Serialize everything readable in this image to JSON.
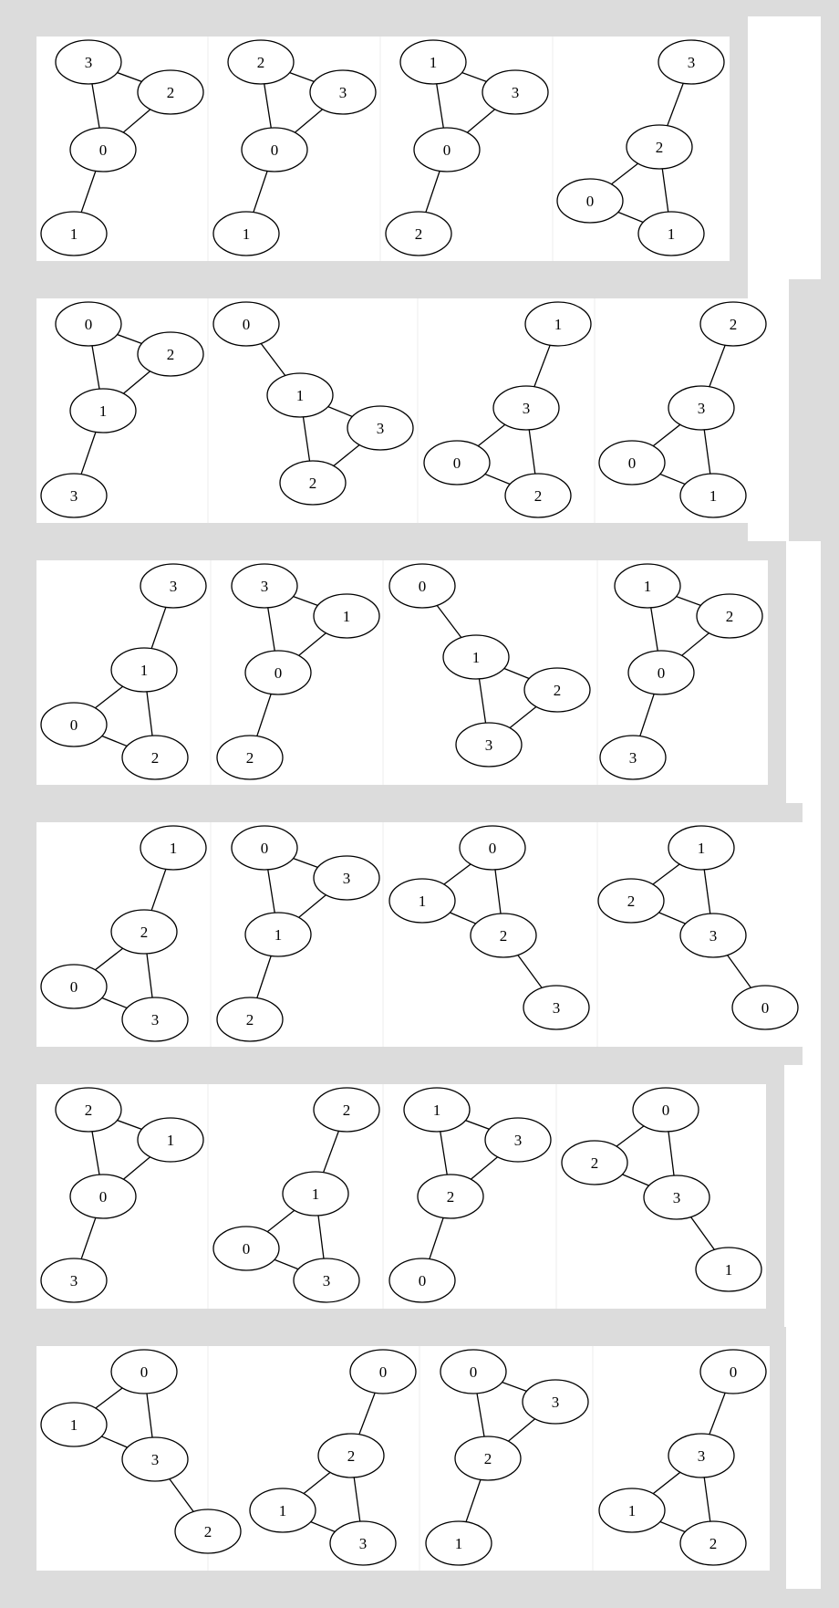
{
  "panels": [
    {
      "cells": [
        {
          "nodes": [
            "3",
            "2",
            "0",
            "1"
          ],
          "edges": [
            [
              0,
              1
            ],
            [
              0,
              2
            ],
            [
              1,
              2
            ],
            [
              2,
              3
            ]
          ]
        },
        {
          "nodes": [
            "2",
            "3",
            "0",
            "1"
          ],
          "edges": [
            [
              0,
              1
            ],
            [
              0,
              2
            ],
            [
              1,
              2
            ],
            [
              2,
              3
            ]
          ]
        },
        {
          "nodes": [
            "1",
            "3",
            "0",
            "2"
          ],
          "edges": [
            [
              0,
              1
            ],
            [
              0,
              2
            ],
            [
              1,
              2
            ],
            [
              2,
              3
            ]
          ]
        },
        {
          "nodes": [
            "3",
            "2",
            "0",
            "1"
          ],
          "edges": [
            [
              0,
              1
            ],
            [
              1,
              2
            ],
            [
              1,
              3
            ],
            [
              2,
              3
            ]
          ]
        }
      ]
    },
    {
      "cells": [
        {
          "nodes": [
            "0",
            "2",
            "1",
            "3"
          ],
          "edges": [
            [
              0,
              1
            ],
            [
              0,
              2
            ],
            [
              1,
              2
            ],
            [
              2,
              3
            ]
          ]
        },
        {
          "nodes": [
            "0",
            "1",
            "3",
            "2"
          ],
          "edges": [
            [
              0,
              1
            ],
            [
              1,
              2
            ],
            [
              1,
              3
            ],
            [
              2,
              3
            ]
          ]
        },
        {
          "nodes": [
            "1",
            "3",
            "0",
            "2"
          ],
          "edges": [
            [
              0,
              1
            ],
            [
              1,
              2
            ],
            [
              1,
              3
            ],
            [
              2,
              3
            ]
          ]
        },
        {
          "nodes": [
            "2",
            "3",
            "0",
            "1"
          ],
          "edges": [
            [
              0,
              1
            ],
            [
              1,
              2
            ],
            [
              1,
              3
            ],
            [
              2,
              3
            ]
          ]
        }
      ]
    },
    {
      "cells": [
        {
          "nodes": [
            "3",
            "1",
            "0",
            "2"
          ],
          "edges": [
            [
              0,
              1
            ],
            [
              1,
              2
            ],
            [
              1,
              3
            ],
            [
              2,
              3
            ]
          ]
        },
        {
          "nodes": [
            "3",
            "1",
            "0",
            "2"
          ],
          "edges": [
            [
              0,
              1
            ],
            [
              0,
              2
            ],
            [
              1,
              2
            ],
            [
              2,
              3
            ]
          ]
        },
        {
          "nodes": [
            "0",
            "1",
            "2",
            "3"
          ],
          "edges": [
            [
              0,
              1
            ],
            [
              1,
              2
            ],
            [
              1,
              3
            ],
            [
              2,
              3
            ]
          ]
        },
        {
          "nodes": [
            "1",
            "2",
            "0",
            "3"
          ],
          "edges": [
            [
              0,
              1
            ],
            [
              0,
              2
            ],
            [
              1,
              2
            ],
            [
              2,
              3
            ]
          ]
        }
      ]
    },
    {
      "cells": [
        {
          "nodes": [
            "1",
            "2",
            "0",
            "3"
          ],
          "edges": [
            [
              0,
              1
            ],
            [
              1,
              2
            ],
            [
              1,
              3
            ],
            [
              2,
              3
            ]
          ]
        },
        {
          "nodes": [
            "0",
            "3",
            "1",
            "2"
          ],
          "edges": [
            [
              0,
              1
            ],
            [
              0,
              2
            ],
            [
              1,
              2
            ],
            [
              2,
              3
            ]
          ]
        },
        {
          "nodes": [
            "0",
            "1",
            "2",
            "3"
          ],
          "edges": [
            [
              0,
              1
            ],
            [
              0,
              2
            ],
            [
              1,
              2
            ],
            [
              2,
              3
            ]
          ]
        },
        {
          "nodes": [
            "1",
            "2",
            "3",
            "0"
          ],
          "edges": [
            [
              0,
              1
            ],
            [
              0,
              2
            ],
            [
              1,
              2
            ],
            [
              2,
              3
            ]
          ]
        }
      ]
    },
    {
      "cells": [
        {
          "nodes": [
            "2",
            "1",
            "0",
            "3"
          ],
          "edges": [
            [
              0,
              1
            ],
            [
              0,
              2
            ],
            [
              1,
              2
            ],
            [
              2,
              3
            ]
          ]
        },
        {
          "nodes": [
            "2",
            "1",
            "0",
            "3"
          ],
          "edges": [
            [
              0,
              1
            ],
            [
              1,
              2
            ],
            [
              1,
              3
            ],
            [
              2,
              3
            ]
          ]
        },
        {
          "nodes": [
            "1",
            "3",
            "2",
            "0"
          ],
          "edges": [
            [
              0,
              1
            ],
            [
              0,
              2
            ],
            [
              1,
              2
            ],
            [
              2,
              3
            ]
          ]
        },
        {
          "nodes": [
            "0",
            "2",
            "3",
            "1"
          ],
          "edges": [
            [
              0,
              1
            ],
            [
              0,
              2
            ],
            [
              1,
              2
            ],
            [
              2,
              3
            ]
          ]
        }
      ]
    },
    {
      "cells": [
        {
          "nodes": [
            "0",
            "1",
            "3",
            "2"
          ],
          "edges": [
            [
              0,
              1
            ],
            [
              0,
              2
            ],
            [
              1,
              2
            ],
            [
              2,
              3
            ]
          ]
        },
        {
          "nodes": [
            "0",
            "2",
            "1",
            "3"
          ],
          "edges": [
            [
              0,
              1
            ],
            [
              1,
              2
            ],
            [
              1,
              3
            ],
            [
              2,
              3
            ]
          ]
        },
        {
          "nodes": [
            "0",
            "3",
            "2",
            "1"
          ],
          "edges": [
            [
              0,
              1
            ],
            [
              0,
              2
            ],
            [
              1,
              2
            ],
            [
              2,
              3
            ]
          ]
        },
        {
          "nodes": [
            "0",
            "3",
            "1",
            "2"
          ],
          "edges": [
            [
              0,
              1
            ],
            [
              1,
              2
            ],
            [
              1,
              3
            ],
            [
              2,
              3
            ]
          ]
        }
      ]
    }
  ]
}
